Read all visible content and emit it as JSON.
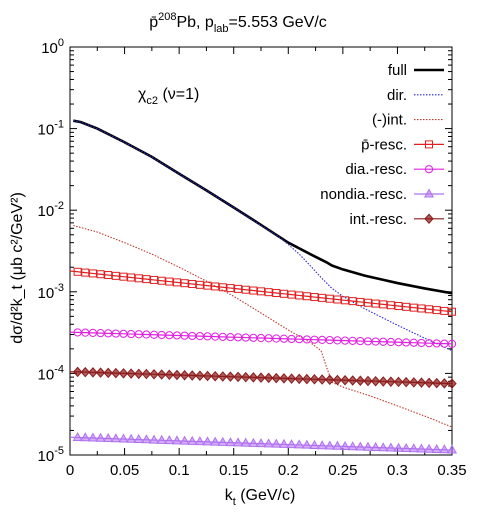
{
  "chart_data": {
    "type": "line",
    "title": {
      "main": "p̄",
      "sup": "208",
      "mid": "Pb, p",
      "sub": "lab",
      "tail": "=5.553 GeV/c"
    },
    "annotation": {
      "main": "χ",
      "sub": "c2",
      "tail": " (ν=1)"
    },
    "xlabel": {
      "main": "k",
      "sub": "t",
      "tail": " (GeV/c)"
    },
    "ylabel": "dσ/d²k_t (μb c²/GeV²)",
    "x_scale": "linear",
    "y_scale": "log",
    "xlim": [
      0,
      0.35
    ],
    "ylim": [
      1e-05,
      1
    ],
    "x_ticks": [
      "0",
      "0.05",
      "0.1",
      "0.15",
      "0.2",
      "0.25",
      "0.3",
      "0.35"
    ],
    "y_ticks": [
      {
        "base": "10",
        "exp": "-5"
      },
      {
        "base": "10",
        "exp": "-4"
      },
      {
        "base": "10",
        "exp": "-3"
      },
      {
        "base": "10",
        "exp": "-2"
      },
      {
        "base": "10",
        "exp": "-1"
      },
      {
        "base": "10",
        "exp": "0"
      }
    ],
    "grid": false,
    "legend_position": "top-right",
    "series": [
      {
        "name": "full",
        "color": "#000000",
        "style": "solid-thick",
        "marker": "none",
        "x": [
          0.003,
          0.01,
          0.025,
          0.05,
          0.075,
          0.1,
          0.125,
          0.15,
          0.175,
          0.2,
          0.22,
          0.235,
          0.24,
          0.25,
          0.27,
          0.3,
          0.325,
          0.35
        ],
        "y": [
          0.125,
          0.12,
          0.1,
          0.068,
          0.045,
          0.028,
          0.0175,
          0.0108,
          0.0066,
          0.004,
          0.0029,
          0.0023,
          0.0021,
          0.00188,
          0.00158,
          0.00128,
          0.0011,
          0.00096
        ]
      },
      {
        "name": "dir.",
        "color": "#2a2ad9",
        "style": "dotted",
        "marker": "none",
        "x": [
          0.003,
          0.01,
          0.025,
          0.05,
          0.075,
          0.1,
          0.125,
          0.15,
          0.175,
          0.19,
          0.2,
          0.21,
          0.22,
          0.23,
          0.24,
          0.25,
          0.27,
          0.3,
          0.325,
          0.35
        ],
        "y": [
          0.125,
          0.12,
          0.1,
          0.068,
          0.045,
          0.028,
          0.0175,
          0.0108,
          0.0065,
          0.0049,
          0.0038,
          0.0029,
          0.0021,
          0.0015,
          0.0011,
          0.00088,
          0.00062,
          0.00039,
          0.00027,
          0.00019
        ]
      },
      {
        "name": "(-)int.",
        "color": "#c0392b",
        "style": "dotted",
        "marker": "none",
        "x": [
          0.003,
          0.025,
          0.05,
          0.075,
          0.1,
          0.125,
          0.15,
          0.175,
          0.2,
          0.22,
          0.23,
          0.235,
          0.24,
          0.25,
          0.275,
          0.3,
          0.325,
          0.35
        ],
        "y": [
          0.0065,
          0.0054,
          0.004,
          0.0029,
          0.002,
          0.00135,
          0.00088,
          0.00055,
          0.00034,
          0.00024,
          0.00019,
          0.00012,
          7.8e-05,
          6.8e-05,
          5.3e-05,
          4e-05,
          3e-05,
          2.2e-05
        ]
      },
      {
        "name": "p̄-resc.",
        "color": "#e02020",
        "style": "solid",
        "marker": "square",
        "x": [
          0.0,
          0.35
        ],
        "y": [
          0.0018,
          0.00057
        ],
        "shape": "log-linear",
        "points": 50
      },
      {
        "name": "dia.-resc.",
        "color": "#e020e0",
        "style": "solid",
        "marker": "circle",
        "x": [
          0.0,
          0.35
        ],
        "y": [
          0.00032,
          0.00023
        ],
        "shape": "log-linear",
        "points": 50
      },
      {
        "name": "nondia.-resc.",
        "color": "#b070f0",
        "style": "solid",
        "marker": "triangle",
        "x": [
          0.0,
          0.35
        ],
        "y": [
          1.65e-05,
          1.15e-05
        ],
        "shape": "log-linear",
        "points": 50
      },
      {
        "name": "int.-resc.",
        "color": "#8b1a1a",
        "style": "solid",
        "marker": "diamond",
        "x": [
          0.0,
          0.35
        ],
        "y": [
          0.000105,
          7.5e-05
        ],
        "shape": "log-linear",
        "points": 50
      }
    ]
  }
}
